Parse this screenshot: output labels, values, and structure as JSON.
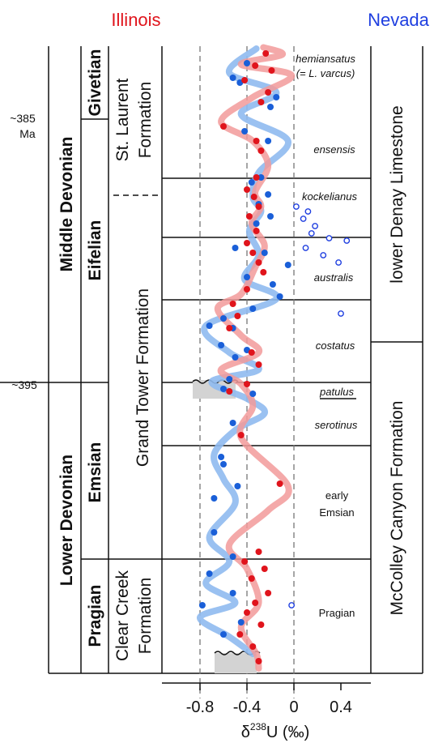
{
  "header": {
    "left_label": "Illinois",
    "right_label": "Nevada"
  },
  "colors": {
    "illinois": "#e0141c",
    "nevada": "#1f3fe0",
    "illinois_curve": "#f29a9a",
    "nevada_curve": "#8fbaf0",
    "gap": "#d3d3d3",
    "blue_dots": "#1a5fd8"
  },
  "age_labels": {
    "a385": "~385",
    "ma": "Ma",
    "a395": "~395"
  },
  "series_col": {
    "middle": "Middle Devonian",
    "lower": "Lower Devonian"
  },
  "stage_col": {
    "givetian": "Givetian",
    "eifelian": "Eifelian",
    "emsian": "Emsian",
    "pragian": "Pragian"
  },
  "formation_col": {
    "st_laurent_1": "St. Laurent",
    "st_laurent_2": "Formation",
    "grand_tower": "Grand Tower Formation",
    "clear_creek_1": "Clear Creek",
    "clear_creek_2": "Formation"
  },
  "zones": {
    "hemiansatus": "hemiansatus",
    "varcus": "(= L. varcus)",
    "ensensis": "ensensis",
    "kockelianus": "kockelianus",
    "australis": "australis",
    "costatus": "costatus",
    "patulus": "patulus",
    "serotinus": "serotinus",
    "early": "early",
    "emsian": "Emsian",
    "pragian": "Pragian"
  },
  "nevada_col": {
    "denay": "lower Denay Limestone",
    "mccolley": "McColley Canyon Formation"
  },
  "chart_data": {
    "type": "scatter",
    "xlabel_prefix": "δ",
    "xlabel_sup": "238",
    "xlabel_suffix": "U (‰)",
    "xlim": [
      -1.1,
      0.45
    ],
    "xticks": [
      -0.8,
      -0.4,
      0,
      0.4
    ],
    "xtick_labels": [
      "-0.8",
      "-0.4",
      "0",
      "0.4"
    ],
    "dashed_gridlines": [
      -0.8,
      -0.4,
      0
    ],
    "series": [
      {
        "name": "Illinois",
        "curve_x": [
          -0.26,
          -0.1,
          -0.45,
          -0.02,
          -0.35,
          -0.62,
          -0.35,
          -0.22,
          -0.33,
          -0.28,
          -0.36,
          -0.25,
          -0.33,
          -0.45,
          -0.65,
          -0.45,
          -0.3,
          -0.62,
          -0.45,
          -0.35,
          -0.45,
          -0.05,
          -0.22,
          -0.55,
          -0.4,
          -0.3,
          -0.45,
          -0.32,
          -0.3
        ],
        "curve_depth": [
          0.05,
          0.35,
          0.75,
          1.2,
          2.1,
          3.1,
          3.9,
          4.9,
          6.0,
          6.6,
          7.3,
          8.2,
          9.1,
          10.2,
          10.8,
          11.9,
          12.6,
          13.3,
          13.9,
          14.8,
          16.1,
          18.1,
          19.1,
          20.5,
          21.5,
          22.9,
          23.9,
          25.0,
          25.6
        ],
        "points": [
          [
            -0.24,
            0.3
          ],
          [
            -0.33,
            0.8
          ],
          [
            -0.19,
            1.0
          ],
          [
            -0.42,
            1.4
          ],
          [
            -0.22,
            1.9
          ],
          [
            -0.28,
            2.3
          ],
          [
            -0.6,
            3.3
          ],
          [
            -0.32,
            3.9
          ],
          [
            -0.28,
            4.3
          ],
          [
            -0.32,
            5.4
          ],
          [
            -0.4,
            5.9
          ],
          [
            -0.34,
            6.2
          ],
          [
            -0.3,
            6.6
          ],
          [
            -0.38,
            7.0
          ],
          [
            -0.32,
            7.6
          ],
          [
            -0.4,
            8.1
          ],
          [
            -0.35,
            8.5
          ],
          [
            -0.3,
            8.9
          ],
          [
            -0.26,
            9.3
          ],
          [
            -0.4,
            10.0
          ],
          [
            -0.52,
            10.6
          ],
          [
            -0.48,
            11.1
          ],
          [
            -0.55,
            11.6
          ],
          [
            -0.36,
            12.6
          ],
          [
            -0.3,
            13.1
          ],
          [
            -0.4,
            13.9
          ],
          [
            -0.55,
            14.2
          ],
          [
            -0.45,
            16.0
          ],
          [
            -0.12,
            18.0
          ],
          [
            -0.3,
            20.8
          ],
          [
            -0.42,
            21.2
          ],
          [
            -0.25,
            21.5
          ],
          [
            -0.36,
            21.9
          ],
          [
            -0.22,
            22.5
          ],
          [
            -0.33,
            22.9
          ],
          [
            -0.4,
            23.3
          ],
          [
            -0.28,
            23.8
          ],
          [
            -0.46,
            24.2
          ],
          [
            -0.35,
            24.7
          ],
          [
            -0.3,
            25.3
          ]
        ]
      },
      {
        "name": "Nevada",
        "curve_x": [
          -0.32,
          -0.55,
          -0.15,
          -0.45,
          -0.05,
          -0.3,
          -0.35,
          -0.28,
          -0.38,
          -0.3,
          -0.42,
          -0.15,
          -0.75,
          -0.55,
          -0.3,
          -0.7,
          -0.4,
          -0.25,
          -0.5,
          -0.68,
          -0.6,
          -0.5,
          -0.72,
          -0.55,
          -0.75,
          -0.5,
          -0.8,
          -0.55,
          -0.35
        ],
        "curve_depth": [
          0.1,
          1.1,
          1.9,
          2.8,
          3.9,
          5.2,
          6.2,
          6.8,
          7.6,
          8.6,
          9.6,
          10.4,
          11.5,
          12.6,
          13.3,
          13.8,
          14.5,
          15.1,
          15.8,
          16.8,
          17.8,
          18.8,
          20.2,
          21.2,
          22.1,
          22.9,
          23.5,
          24.3,
          25.0
        ],
        "points": [
          [
            -0.4,
            0.7
          ],
          [
            -0.52,
            1.3
          ],
          [
            -0.46,
            1.5
          ],
          [
            -0.15,
            2.1
          ],
          [
            -0.2,
            2.5
          ],
          [
            -0.42,
            3.5
          ],
          [
            -0.22,
            3.9
          ],
          [
            -0.28,
            5.4
          ],
          [
            -0.36,
            5.6
          ],
          [
            -0.22,
            6.1
          ],
          [
            -0.3,
            6.5
          ],
          [
            -0.2,
            7.0
          ],
          [
            -0.32,
            7.3
          ],
          [
            -0.5,
            8.3
          ],
          [
            -0.25,
            8.5
          ],
          [
            -0.05,
            9.0
          ],
          [
            -0.4,
            9.5
          ],
          [
            -0.18,
            9.8
          ],
          [
            -0.12,
            10.3
          ],
          [
            -0.35,
            10.8
          ],
          [
            -0.52,
            11.6
          ],
          [
            -0.6,
            11.2
          ],
          [
            -0.72,
            11.5
          ],
          [
            -0.62,
            12.3
          ],
          [
            -0.5,
            12.8
          ],
          [
            -0.4,
            12.5
          ],
          [
            -0.55,
            13.7
          ],
          [
            -0.35,
            14.3
          ],
          [
            -0.6,
            14.1
          ],
          [
            -0.52,
            15.5
          ],
          [
            -0.62,
            16.9
          ],
          [
            -0.68,
            18.6
          ],
          [
            -0.48,
            18.1
          ],
          [
            -0.6,
            17.2
          ],
          [
            -0.68,
            20.0
          ],
          [
            -0.52,
            21.0
          ],
          [
            -0.72,
            21.7
          ],
          [
            -0.52,
            22.5
          ],
          [
            -0.78,
            23.0
          ],
          [
            -0.45,
            23.7
          ],
          [
            -0.6,
            24.2
          ]
        ]
      },
      {
        "name": "Nevada (open)",
        "points": [
          [
            0.02,
            6.6
          ],
          [
            0.12,
            6.8
          ],
          [
            0.08,
            7.1
          ],
          [
            0.18,
            7.4
          ],
          [
            0.15,
            7.7
          ],
          [
            0.3,
            7.9
          ],
          [
            0.45,
            8.0
          ],
          [
            0.1,
            8.3
          ],
          [
            0.25,
            8.6
          ],
          [
            0.38,
            8.9
          ],
          [
            0.4,
            11.0
          ],
          [
            -0.02,
            23.0
          ]
        ]
      }
    ]
  }
}
